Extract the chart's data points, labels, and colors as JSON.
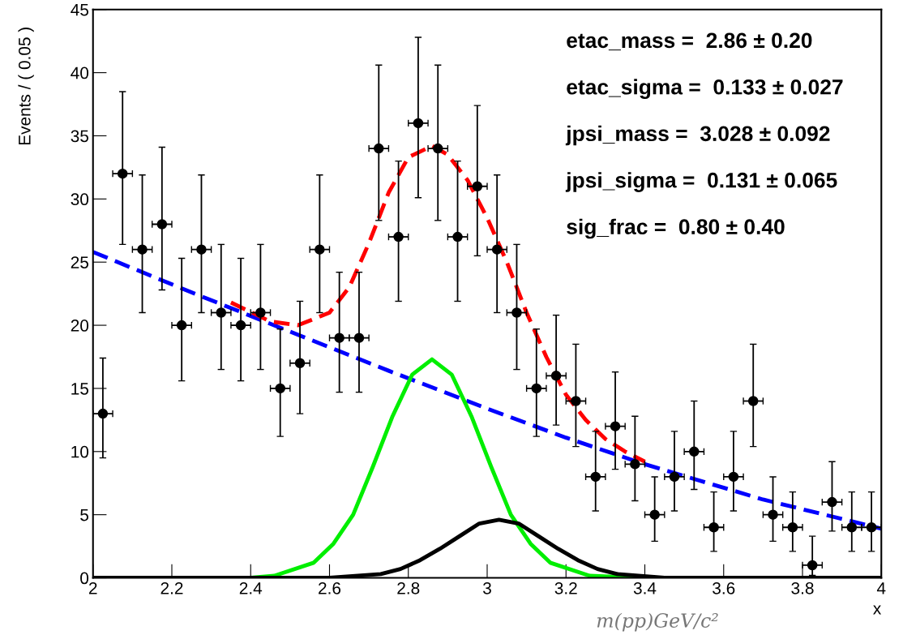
{
  "chart_data": {
    "type": "scatter",
    "ylabel": "Events / ( 0.05 )",
    "xlabel": "x",
    "xlim": [
      2,
      4
    ],
    "ylim": [
      0,
      45
    ],
    "xticks": [
      2,
      2.2,
      2.4,
      2.6,
      2.8,
      3,
      3.2,
      3.4,
      3.6,
      3.8,
      4
    ],
    "yticks": [
      0,
      5,
      10,
      15,
      20,
      25,
      30,
      35,
      40,
      45
    ],
    "grid": false,
    "legend": false,
    "annotations": [
      "etac_mass =  2.86 ± 0.20",
      "etac_sigma =  0.133 ± 0.027",
      "jpsi_mass =  3.028 ± 0.092",
      "jpsi_sigma =  0.131 ± 0.065",
      "sig_frac =  0.80 ± 0.40",
      "m(pp)GeV/c²"
    ],
    "series": [
      {
        "type": "line",
        "color": "#0000ff",
        "line_style": "dashed",
        "marker": "none",
        "x": [
          2.0,
          2.25,
          2.5,
          2.75,
          3.0,
          3.2,
          3.4,
          3.7,
          4.0
        ],
        "values": [
          25.8,
          22.6,
          19.5,
          16.4,
          13.4,
          11.1,
          9.0,
          6.2,
          3.9
        ]
      },
      {
        "type": "line",
        "color": "#00ee00",
        "line_style": "solid",
        "marker": "none",
        "x": [
          2.4,
          2.46,
          2.56,
          2.61,
          2.66,
          2.71,
          2.76,
          2.81,
          2.86,
          2.91,
          2.96,
          3.01,
          3.06,
          3.11,
          3.16,
          3.26,
          3.4
        ],
        "values": [
          0,
          0.16,
          1.2,
          2.7,
          5.0,
          8.8,
          12.8,
          16.1,
          17.3,
          16.1,
          12.8,
          8.8,
          5.0,
          2.7,
          1.2,
          0.16,
          0
        ]
      },
      {
        "type": "line",
        "color": "#000000",
        "line_style": "solid",
        "marker": "none",
        "x": [
          2.0,
          2.6,
          2.73,
          2.78,
          2.83,
          2.88,
          2.93,
          2.98,
          3.03,
          3.08,
          3.13,
          3.18,
          3.23,
          3.28,
          3.33,
          3.45,
          4.0
        ],
        "values": [
          0,
          0,
          0.3,
          0.7,
          1.4,
          2.3,
          3.3,
          4.3,
          4.6,
          4.3,
          3.3,
          2.3,
          1.4,
          0.7,
          0.3,
          0,
          0
        ]
      },
      {
        "type": "line",
        "color": "#ff0000",
        "line_style": "dashed",
        "marker": "none",
        "x": [
          2.35,
          2.45,
          2.52,
          2.6,
          2.65,
          2.7,
          2.75,
          2.8,
          2.86,
          2.9,
          2.95,
          3.0,
          3.05,
          3.1,
          3.15,
          3.2,
          3.25,
          3.3,
          3.35,
          3.4
        ],
        "values": [
          21.8,
          20.3,
          20.0,
          21.0,
          23.0,
          26.5,
          30.5,
          33.3,
          34.2,
          33.5,
          31.5,
          28.5,
          25.0,
          21.0,
          17.5,
          14.5,
          12.5,
          11.0,
          10.0,
          9.2
        ]
      },
      {
        "color": "#000000",
        "marker": "circle",
        "x": [
          2.025,
          2.075,
          2.125,
          2.175,
          2.225,
          2.275,
          2.325,
          2.375,
          2.425,
          2.475,
          2.525,
          2.575,
          2.625,
          2.675,
          2.725,
          2.775,
          2.825,
          2.875,
          2.925,
          2.975,
          3.025,
          3.075,
          3.125,
          3.175,
          3.225,
          3.275,
          3.325,
          3.375,
          3.425,
          3.475,
          3.525,
          3.575,
          3.625,
          3.675,
          3.725,
          3.775,
          3.825,
          3.875,
          3.925,
          3.975
        ],
        "values": [
          13,
          32,
          26,
          28,
          20,
          26,
          21,
          20,
          21,
          15,
          17,
          26,
          19,
          19,
          34,
          27,
          36,
          34,
          27,
          31,
          26,
          21,
          15,
          16,
          14,
          8,
          12,
          9,
          5,
          8,
          10,
          4,
          8,
          14,
          5,
          4,
          1,
          6,
          4,
          4
        ],
        "errors": [
          [
            9.5,
            17.4
          ],
          [
            26.4,
            38.5
          ],
          [
            21.0,
            31.9
          ],
          [
            22.8,
            34.1
          ],
          [
            15.6,
            25.3
          ],
          [
            21.0,
            31.9
          ],
          [
            16.5,
            26.4
          ],
          [
            15.6,
            25.3
          ],
          [
            16.5,
            26.4
          ],
          [
            11.2,
            19.7
          ],
          [
            13.0,
            21.9
          ],
          [
            21.0,
            31.9
          ],
          [
            14.7,
            24.2
          ],
          [
            14.7,
            24.2
          ],
          [
            28.3,
            40.6
          ],
          [
            21.9,
            33.0
          ],
          [
            30.1,
            42.8
          ],
          [
            28.3,
            40.6
          ],
          [
            21.9,
            33.0
          ],
          [
            25.5,
            37.4
          ],
          [
            21.0,
            31.9
          ],
          [
            16.5,
            26.4
          ],
          [
            11.2,
            19.7
          ],
          [
            12.1,
            20.8
          ],
          [
            10.4,
            18.5
          ],
          [
            5.3,
            11.6
          ],
          [
            8.6,
            16.3
          ],
          [
            6.1,
            12.8
          ],
          [
            2.9,
            8.0
          ],
          [
            5.3,
            11.6
          ],
          [
            7.0,
            14.0
          ],
          [
            2.1,
            6.8
          ],
          [
            5.3,
            11.6
          ],
          [
            10.4,
            18.5
          ],
          [
            2.9,
            8.0
          ],
          [
            2.1,
            6.8
          ],
          [
            0.2,
            3.3
          ],
          [
            3.7,
            9.2
          ],
          [
            2.1,
            6.8
          ],
          [
            2.1,
            6.8
          ]
        ],
        "xerrors": [
          0.025,
          0.025,
          0.025,
          0.025,
          0.025,
          0.025,
          0.025,
          0.025,
          0.025,
          0.025,
          0.025,
          0.025,
          0.025,
          0.025,
          0.025,
          0.025,
          0.025,
          0.025,
          0.025,
          0.025,
          0.025,
          0.025,
          0.025,
          0.025,
          0.025,
          0.025,
          0.025,
          0.025,
          0.025,
          0.025,
          0.025,
          0.025,
          0.025,
          0.025,
          0.025,
          0.025,
          0.025,
          0.025,
          0.025,
          0.025
        ]
      }
    ]
  }
}
